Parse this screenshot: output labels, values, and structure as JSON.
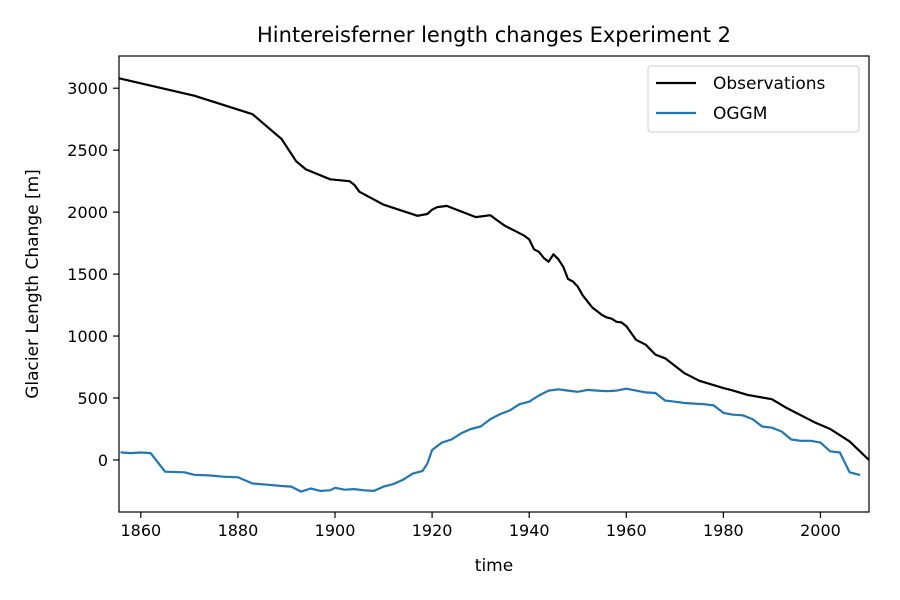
{
  "chart_data": {
    "type": "line",
    "title": "Hintereisferner length changes Experiment 2",
    "xlabel": "time",
    "ylabel": "Glacier Length Change [m]",
    "xlim": [
      1855.5,
      2010
    ],
    "ylim": [
      -420,
      3260
    ],
    "xticks": [
      1860,
      1880,
      1900,
      1920,
      1940,
      1960,
      1980,
      2000
    ],
    "yticks": [
      0,
      500,
      1000,
      1500,
      2000,
      2500,
      3000
    ],
    "legend_position": "top-right",
    "series": [
      {
        "name": "Observations",
        "color": "#000000",
        "x": [
          1855.5,
          1871,
          1883,
          1889,
          1892,
          1894,
          1899,
          1903,
          1904,
          1905,
          1910,
          1917,
          1919,
          1920,
          1921,
          1923,
          1929,
          1932,
          1933,
          1935,
          1937,
          1938,
          1939,
          1940,
          1941,
          1942,
          1943,
          1944,
          1945,
          1946,
          1947,
          1948,
          1949,
          1950,
          1951,
          1952,
          1953,
          1954,
          1955,
          1956,
          1957,
          1958,
          1959,
          1960,
          1962,
          1964,
          1966,
          1968,
          1970,
          1972,
          1975,
          1980,
          1982,
          1985,
          1990,
          1993,
          1995,
          1997,
          1999,
          2002,
          2004,
          2006,
          2010
        ],
        "y": [
          3080,
          2940,
          2790,
          2590,
          2410,
          2345,
          2265,
          2250,
          2220,
          2165,
          2060,
          1970,
          1985,
          2020,
          2040,
          2050,
          1960,
          1975,
          1945,
          1890,
          1850,
          1830,
          1810,
          1780,
          1700,
          1680,
          1630,
          1600,
          1660,
          1620,
          1560,
          1460,
          1440,
          1400,
          1330,
          1280,
          1230,
          1200,
          1170,
          1150,
          1140,
          1115,
          1110,
          1080,
          970,
          930,
          850,
          820,
          760,
          700,
          640,
          580,
          560,
          525,
          490,
          420,
          380,
          340,
          300,
          250,
          200,
          150,
          0
        ]
      },
      {
        "name": "OGGM",
        "color": "#1f77b4",
        "x": [
          1856,
          1858,
          1860,
          1862,
          1865,
          1869,
          1871,
          1874,
          1877,
          1880,
          1883,
          1886,
          1889,
          1891,
          1893,
          1895,
          1897,
          1899,
          1900,
          1902,
          1904,
          1906,
          1908,
          1910,
          1912,
          1914,
          1916,
          1918,
          1919,
          1920,
          1922,
          1924,
          1926,
          1928,
          1930,
          1932,
          1934,
          1936,
          1938,
          1940,
          1942,
          1944,
          1946,
          1948,
          1950,
          1952,
          1954,
          1956,
          1958,
          1960,
          1962,
          1964,
          1966,
          1968,
          1970,
          1972,
          1974,
          1976,
          1978,
          1980,
          1982,
          1984,
          1986,
          1988,
          1990,
          1992,
          1994,
          1996,
          1998,
          2000,
          2002,
          2004,
          2006,
          2008
        ],
        "y": [
          60,
          55,
          60,
          55,
          -95,
          -100,
          -120,
          -125,
          -135,
          -140,
          -190,
          -200,
          -210,
          -215,
          -255,
          -230,
          -250,
          -245,
          -225,
          -240,
          -235,
          -245,
          -250,
          -215,
          -195,
          -160,
          -110,
          -90,
          -30,
          80,
          140,
          165,
          215,
          250,
          270,
          330,
          370,
          400,
          450,
          470,
          520,
          560,
          570,
          560,
          550,
          565,
          560,
          555,
          560,
          575,
          560,
          545,
          540,
          480,
          470,
          460,
          455,
          450,
          440,
          380,
          365,
          360,
          330,
          270,
          260,
          230,
          165,
          155,
          155,
          140,
          70,
          60,
          -100,
          -120
        ]
      }
    ]
  }
}
